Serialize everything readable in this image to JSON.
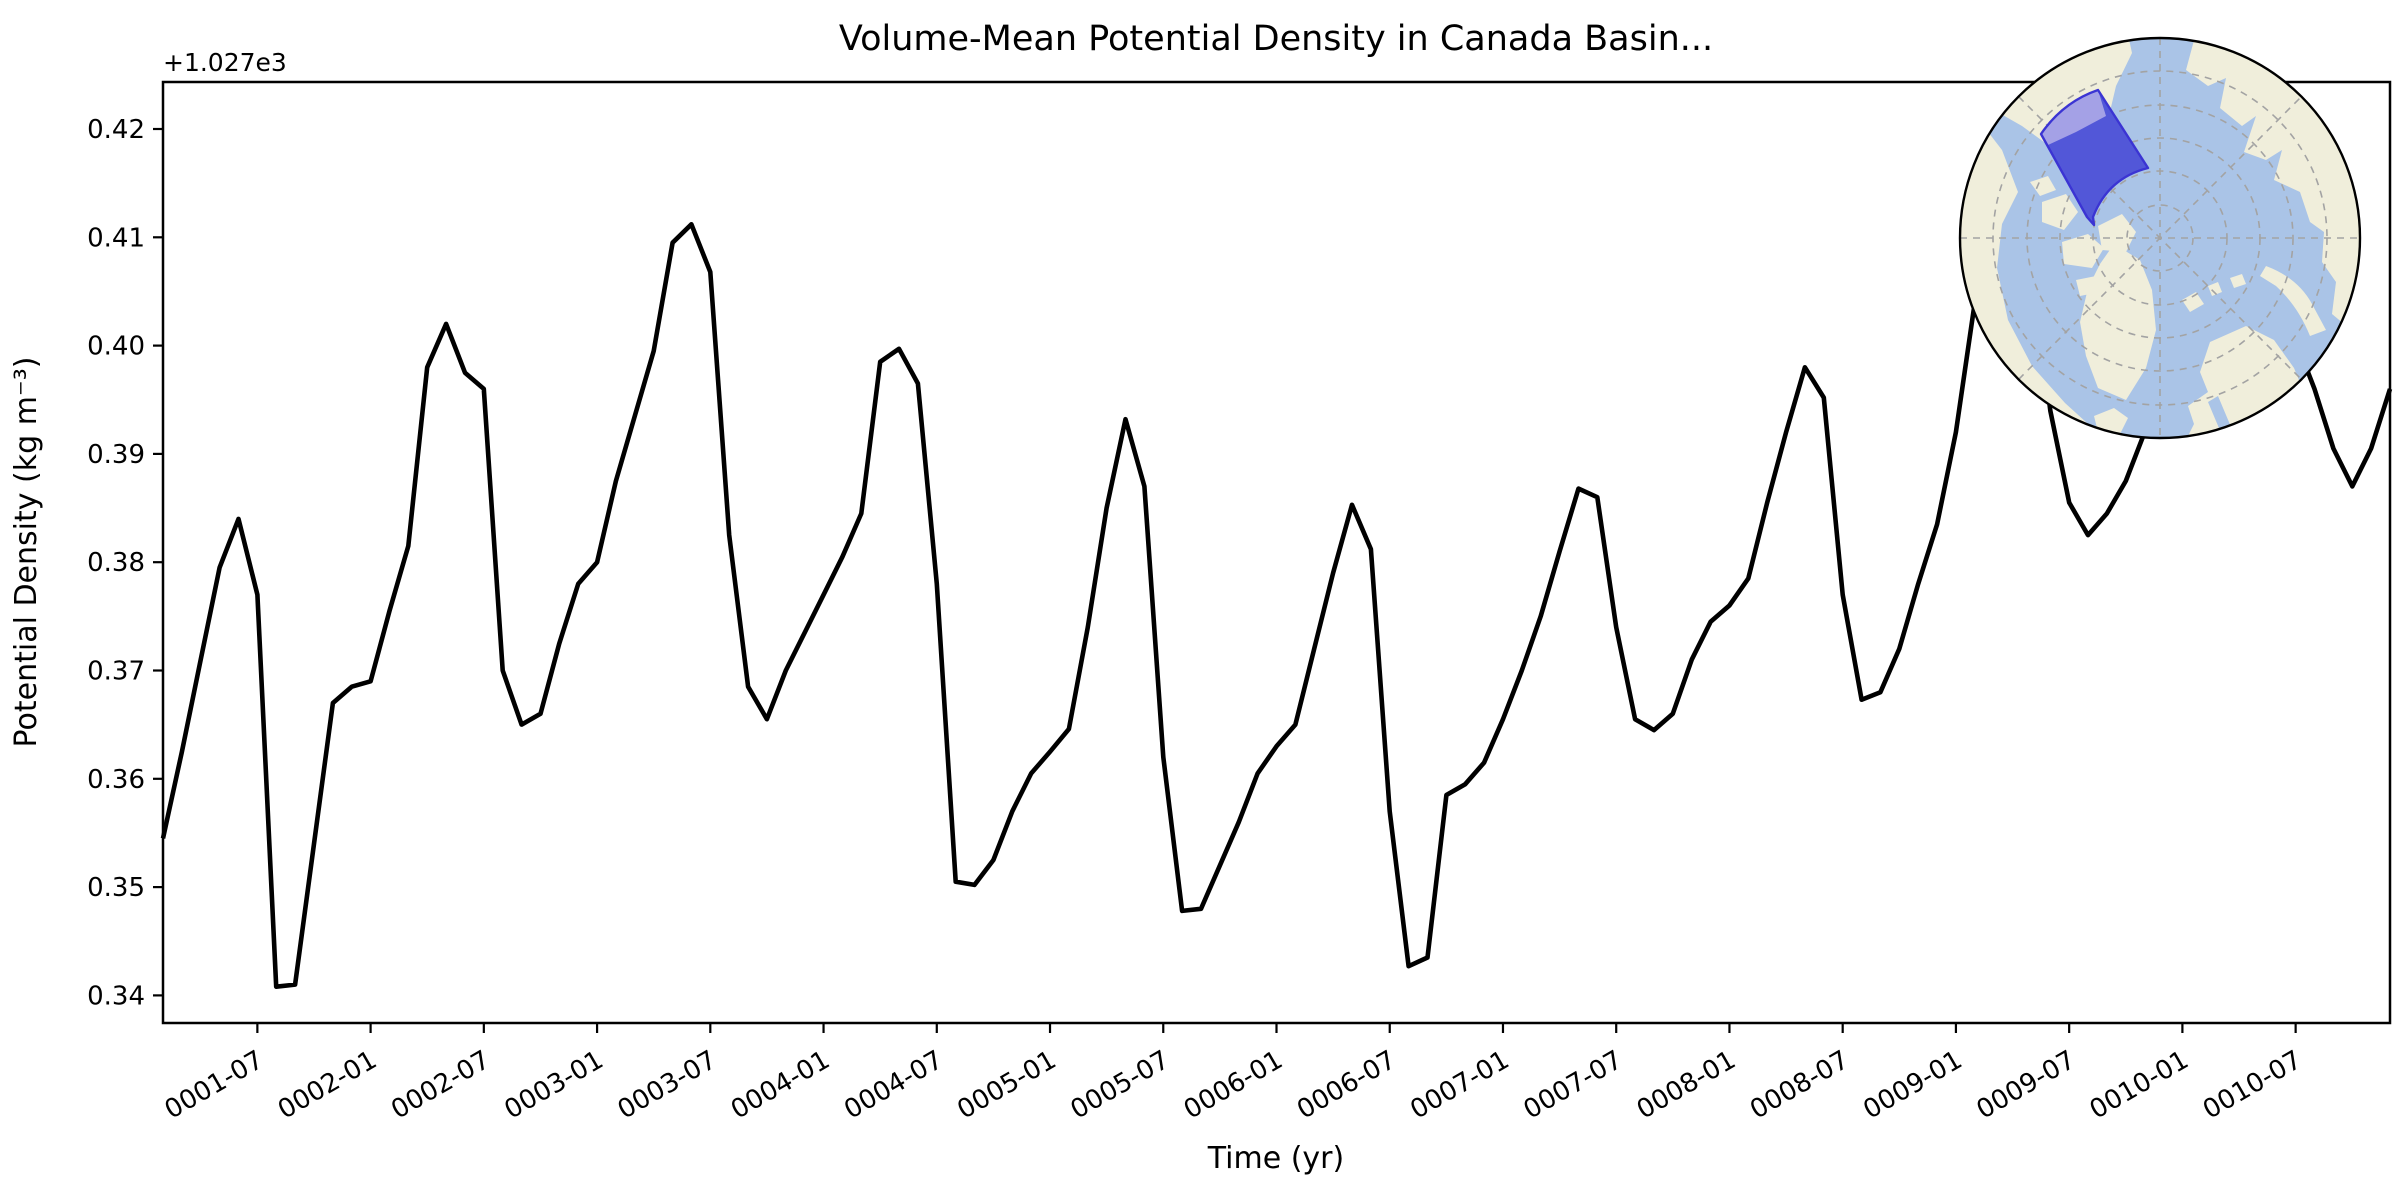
{
  "figure": {
    "background": "#ffffff"
  },
  "chart_data": {
    "type": "line",
    "title": "Volume-Mean Potential Density in Canada Basin...",
    "xlabel": "Time (yr)",
    "ylabel": "Potential Density (kg m⁻³)",
    "y_offset_text": "+1.027e3",
    "y_base": 1027,
    "grid": false,
    "legend": null,
    "line_color": "#000000",
    "line_width": 4.6,
    "ylim": [
      0.3375,
      0.4243
    ],
    "y_tick_labels": [
      "0.42",
      "0.41",
      "0.40",
      "0.39",
      "0.38",
      "0.37",
      "0.36",
      "0.35",
      "0.34"
    ],
    "y_tick_values": [
      0.42,
      0.41,
      0.4,
      0.39,
      0.38,
      0.37,
      0.36,
      0.35,
      0.34
    ],
    "x_tick_labels": [
      "0001-07",
      "0002-01",
      "0002-07",
      "0003-01",
      "0003-07",
      "0004-01",
      "0004-07",
      "0005-01",
      "0005-07",
      "0006-01",
      "0006-07",
      "0007-01",
      "0007-07",
      "0008-01",
      "0008-07",
      "0009-01",
      "0009-07",
      "0010-01",
      "0010-07"
    ],
    "x": [
      "0001-02",
      "0001-03",
      "0001-04",
      "0001-05",
      "0001-06",
      "0001-07",
      "0001-08",
      "0001-09",
      "0001-10",
      "0001-11",
      "0001-12",
      "0002-01",
      "0002-02",
      "0002-03",
      "0002-04",
      "0002-05",
      "0002-06",
      "0002-07",
      "0002-08",
      "0002-09",
      "0002-10",
      "0002-11",
      "0002-12",
      "0003-01",
      "0003-02",
      "0003-03",
      "0003-04",
      "0003-05",
      "0003-06",
      "0003-07",
      "0003-08",
      "0003-09",
      "0003-10",
      "0003-11",
      "0003-12",
      "0004-01",
      "0004-02",
      "0004-03",
      "0004-04",
      "0004-05",
      "0004-06",
      "0004-07",
      "0004-08",
      "0004-09",
      "0004-10",
      "0004-11",
      "0004-12",
      "0005-01",
      "0005-02",
      "0005-03",
      "0005-04",
      "0005-05",
      "0005-06",
      "0005-07",
      "0005-08",
      "0005-09",
      "0005-10",
      "0005-11",
      "0005-12",
      "0006-01",
      "0006-02",
      "0006-03",
      "0006-04",
      "0006-05",
      "0006-06",
      "0006-07",
      "0006-08",
      "0006-09",
      "0006-10",
      "0006-11",
      "0006-12",
      "0007-01",
      "0007-02",
      "0007-03",
      "0007-04",
      "0007-05",
      "0007-06",
      "0007-07",
      "0007-08",
      "0007-09",
      "0007-10",
      "0007-11",
      "0007-12",
      "0008-01",
      "0008-02",
      "0008-03",
      "0008-04",
      "0008-05",
      "0008-06",
      "0008-07",
      "0008-08",
      "0008-09",
      "0008-10",
      "0008-11",
      "0008-12",
      "0009-01",
      "0009-02",
      "0009-03",
      "0009-04",
      "0009-05",
      "0009-06",
      "0009-07",
      "0009-08",
      "0009-09",
      "0009-10",
      "0009-11",
      "0009-12",
      "0010-01",
      "0010-02",
      "0010-03",
      "0010-04",
      "0010-05",
      "0010-06",
      "0010-07",
      "0010-08",
      "0010-09",
      "0010-10",
      "0010-11",
      "0010-12"
    ],
    "values": [
      0.3545,
      0.3625,
      0.371,
      0.3795,
      0.384,
      0.377,
      0.3408,
      0.341,
      0.354,
      0.367,
      0.3685,
      0.369,
      0.3755,
      0.3815,
      0.398,
      0.402,
      0.3975,
      0.396,
      0.37,
      0.365,
      0.366,
      0.3725,
      0.378,
      0.38,
      0.3875,
      0.3935,
      0.3995,
      0.4095,
      0.4112,
      0.4068,
      0.3825,
      0.3685,
      0.3655,
      0.37,
      0.3735,
      0.377,
      0.3805,
      0.3845,
      0.3985,
      0.3997,
      0.3965,
      0.378,
      0.3505,
      0.3502,
      0.3525,
      0.357,
      0.3605,
      0.3625,
      0.3646,
      0.374,
      0.385,
      0.3932,
      0.387,
      0.362,
      0.3478,
      0.348,
      0.352,
      0.356,
      0.3605,
      0.363,
      0.365,
      0.372,
      0.379,
      0.3853,
      0.3812,
      0.357,
      0.3427,
      0.3435,
      0.3585,
      0.3595,
      0.3615,
      0.3655,
      0.37,
      0.375,
      0.381,
      0.3868,
      0.386,
      0.374,
      0.3655,
      0.3645,
      0.366,
      0.371,
      0.3745,
      0.376,
      0.3785,
      0.3855,
      0.392,
      0.398,
      0.3952,
      0.377,
      0.3673,
      0.368,
      0.372,
      0.378,
      0.3835,
      0.392,
      0.404,
      0.4135,
      0.4165,
      0.408,
      0.394,
      0.3855,
      0.3825,
      0.3845,
      0.3875,
      0.392,
      0.3975,
      0.408,
      0.416,
      0.4205,
      0.4195,
      0.414,
      0.406,
      0.4005,
      0.396,
      0.3905,
      0.387,
      0.3905,
      0.396
    ],
    "inset_map": {
      "projection": "North Polar Stereographic",
      "highlight_region": "Canada Basin",
      "graticule": "dashed, 5° latitude circles, 45° meridians",
      "colors": {
        "ocean": "#aac4e7",
        "land": "#f0eedb",
        "graticule": "#a3a3a3",
        "region_fill": "#5257d8",
        "region_fill_over_land": "#a4a1e6",
        "region_edge": "#3b34d3",
        "map_border": "#000000"
      }
    }
  }
}
